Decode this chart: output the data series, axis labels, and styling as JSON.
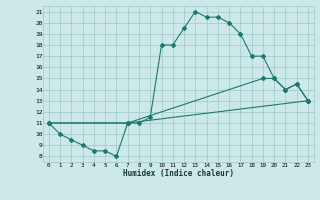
{
  "xlabel": "Humidex (Indice chaleur)",
  "bg_color": "#cde8e8",
  "line_color": "#1a7a6e",
  "grid_color": "#9dc8c8",
  "xlim": [
    -0.5,
    23.5
  ],
  "ylim": [
    7.5,
    21.5
  ],
  "xticks": [
    0,
    1,
    2,
    3,
    4,
    5,
    6,
    7,
    8,
    9,
    10,
    11,
    12,
    13,
    14,
    15,
    16,
    17,
    18,
    19,
    20,
    21,
    22,
    23
  ],
  "yticks": [
    8,
    9,
    10,
    11,
    12,
    13,
    14,
    15,
    16,
    17,
    18,
    19,
    20,
    21
  ],
  "series": [
    {
      "x": [
        0,
        1,
        2,
        3,
        4,
        5,
        6,
        7,
        8,
        9,
        10,
        11,
        12,
        13,
        14,
        15,
        16,
        17,
        18,
        19,
        20,
        21,
        22,
        23
      ],
      "y": [
        11,
        10,
        9.5,
        9,
        8.5,
        8.5,
        8,
        11,
        11,
        11.5,
        18,
        18,
        19.5,
        21,
        20.5,
        20.5,
        20,
        19,
        17,
        17,
        15,
        14,
        14.5,
        13
      ]
    },
    {
      "x": [
        0,
        7,
        23
      ],
      "y": [
        11,
        11,
        13
      ]
    },
    {
      "x": [
        0,
        7,
        19,
        20,
        21,
        22,
        23
      ],
      "y": [
        11,
        11,
        15,
        15,
        14,
        14.5,
        13
      ]
    }
  ]
}
